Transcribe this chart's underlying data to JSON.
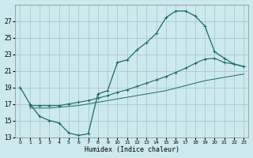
{
  "xlabel": "Humidex (Indice chaleur)",
  "bg_color": "#cce9ed",
  "grid_color": "#b0cdd0",
  "line_color": "#1a6b6b",
  "xlim": [
    -0.5,
    23.5
  ],
  "ylim": [
    13,
    29
  ],
  "xticks": [
    0,
    1,
    2,
    3,
    4,
    5,
    6,
    7,
    8,
    9,
    10,
    11,
    12,
    13,
    14,
    15,
    16,
    17,
    18,
    19,
    20,
    21,
    22,
    23
  ],
  "yticks": [
    13,
    15,
    17,
    19,
    21,
    23,
    25,
    27
  ],
  "curve1_x": [
    0,
    1,
    2,
    3,
    4,
    5,
    6,
    7,
    8,
    9,
    10,
    11,
    12,
    13,
    14,
    15,
    16,
    17,
    18,
    19,
    20,
    21,
    22,
    23
  ],
  "curve1_y": [
    19.0,
    17.0,
    15.5,
    15.0,
    14.7,
    13.5,
    13.2,
    13.4,
    18.2,
    18.6,
    22.0,
    22.3,
    23.5,
    24.4,
    25.5,
    27.4,
    28.2,
    28.2,
    27.6,
    26.4,
    23.3,
    22.5,
    21.8,
    21.5
  ],
  "curve2_x": [
    1,
    2,
    3,
    4,
    5,
    6,
    7,
    8,
    9,
    10,
    11,
    12,
    13,
    14,
    15,
    16,
    17,
    18,
    19,
    20,
    21,
    22,
    23
  ],
  "curve2_y": [
    16.8,
    16.8,
    16.8,
    16.8,
    17.0,
    17.2,
    17.4,
    17.7,
    18.0,
    18.4,
    18.7,
    19.1,
    19.5,
    19.9,
    20.3,
    20.8,
    21.3,
    21.9,
    22.4,
    22.5,
    22.0,
    21.8,
    21.5
  ],
  "curve3_x": [
    1,
    2,
    3,
    4,
    5,
    6,
    7,
    8,
    9,
    10,
    11,
    12,
    13,
    14,
    15,
    16,
    17,
    18,
    19,
    20,
    21,
    22,
    23
  ],
  "curve3_y": [
    16.5,
    16.5,
    16.5,
    16.6,
    16.7,
    16.8,
    17.0,
    17.2,
    17.4,
    17.6,
    17.8,
    18.0,
    18.2,
    18.4,
    18.6,
    18.9,
    19.2,
    19.5,
    19.8,
    20.0,
    20.2,
    20.4,
    20.6
  ]
}
